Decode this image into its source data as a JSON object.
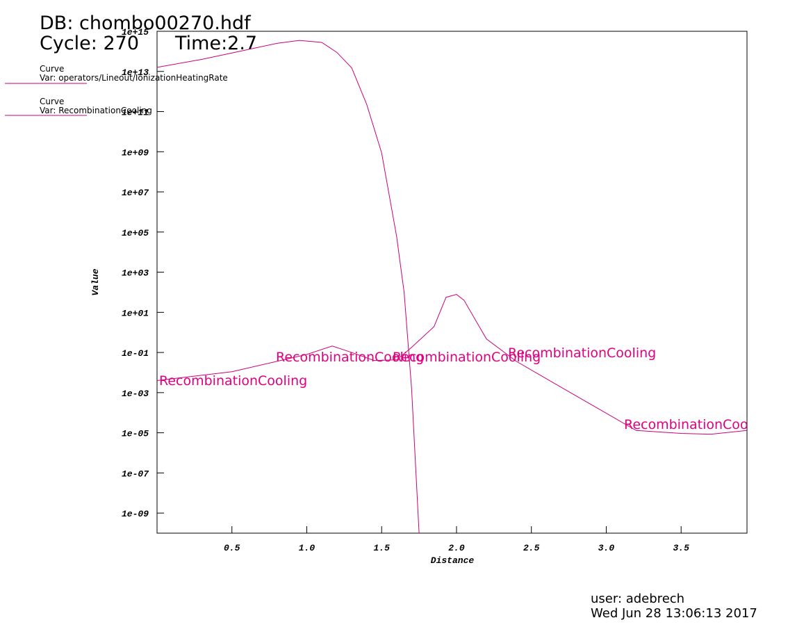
{
  "header": {
    "db": "DB: chombo00270.hdf",
    "cycle": "Cycle: 270",
    "time": "Time:2.7"
  },
  "footer": {
    "user": "user: adebrech",
    "date": "Wed Jun 28 13:06:13 2017"
  },
  "chart_data": {
    "type": "line",
    "xlabel": "Distance",
    "ylabel": "Value",
    "log_y": true,
    "xlim": [
      0,
      3.94
    ],
    "ylim": [
      1e-10,
      1000000000000000.0
    ],
    "xticks": [
      0.5,
      {
        "value": 1,
        "label": "1.0"
      },
      1.5,
      {
        "value": 2,
        "label": "2.0"
      },
      2.5,
      {
        "value": 3,
        "label": "3.0"
      },
      3.5
    ],
    "yticks": [
      {
        "value": 1000000000000000.0,
        "label": "1e+15"
      },
      {
        "value": 10000000000000.0,
        "label": "1e+13"
      },
      {
        "value": 100000000000.0,
        "label": "1e+11"
      },
      {
        "value": 1000000000.0,
        "label": "1e+09"
      },
      {
        "value": 10000000.0,
        "label": "1e+07"
      },
      {
        "value": 100000.0,
        "label": "1e+05"
      },
      {
        "value": 1000.0,
        "label": "1e+03"
      },
      {
        "value": 10,
        "label": "1e+01"
      },
      {
        "value": 0.1,
        "label": "1e-01"
      },
      {
        "value": 0.001,
        "label": "1e-03"
      },
      {
        "value": 1e-05,
        "label": "1e-05"
      },
      {
        "value": 1e-07,
        "label": "1e-07"
      },
      {
        "value": 1e-09,
        "label": "1e-09"
      }
    ],
    "series": [
      {
        "name": "Curve",
        "var": "Var: operators/Lineout/IonizationHeatingRate",
        "color": "#cc0077",
        "x": [
          0,
          0.3,
          0.6,
          0.8,
          0.95,
          1.1,
          1.2,
          1.3,
          1.4,
          1.5,
          1.6,
          1.65,
          1.7,
          1.75
        ],
        "values": [
          16000000000000.0,
          40000000000000.0,
          120000000000000.0,
          250000000000000.0,
          350000000000000.0,
          280000000000000.0,
          90000000000000.0,
          15000000000000.0,
          230000000000.0,
          870000000.0,
          60000.0,
          100.0,
          0.0016,
          1e-10
        ]
      },
      {
        "name": "Curve",
        "var": "Var: RecombinationCooling",
        "color": "#cc0077",
        "x": [
          0,
          0.5,
          1.0,
          1.17,
          1.3,
          1.45,
          1.6,
          1.7,
          1.85,
          1.93,
          2.0,
          2.05,
          2.2,
          2.4,
          2.8,
          3.2,
          3.5,
          3.7,
          3.94
        ],
        "values": [
          0.004,
          0.011,
          0.08,
          0.21,
          0.1,
          0.04,
          0.043,
          0.18,
          1.95,
          56,
          78,
          40,
          0.47,
          0.036,
          0.00068,
          1.3e-05,
          9.3e-06,
          8.5e-06,
          1.3e-05
        ]
      }
    ],
    "annotations": [
      "RecombinationCooling",
      "RecombinationCooling",
      "RecombinationCooling",
      "RecombinationCooling",
      "RecombinationCooling"
    ]
  }
}
